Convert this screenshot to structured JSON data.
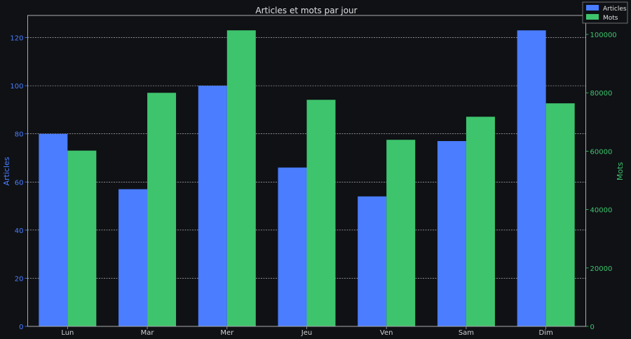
{
  "chart_data": {
    "type": "bar",
    "title": "Articles et mots par jour",
    "categories": [
      "Lun",
      "Mar",
      "Mer",
      "Jeu",
      "Ven",
      "Sam",
      "Dim"
    ],
    "series": [
      {
        "name": "Articles",
        "axis": "left",
        "color": "#4a7dff",
        "values": [
          80,
          57,
          100,
          66,
          54,
          77,
          123
        ]
      },
      {
        "name": "Mots",
        "axis": "right",
        "color": "#3ec46d",
        "values": [
          60200,
          80000,
          101400,
          77600,
          63900,
          71800,
          76400
        ]
      }
    ],
    "xlabel": "",
    "ylabel": "Articles",
    "y2label": "Mots",
    "ylim": [
      0,
      129.2
    ],
    "y2lim": [
      0,
      106500
    ],
    "yticks": [
      0,
      20,
      40,
      60,
      80,
      100,
      120
    ],
    "y2ticks": [
      0,
      20000,
      40000,
      60000,
      80000,
      100000
    ],
    "grid": true,
    "legend": "top-right"
  }
}
